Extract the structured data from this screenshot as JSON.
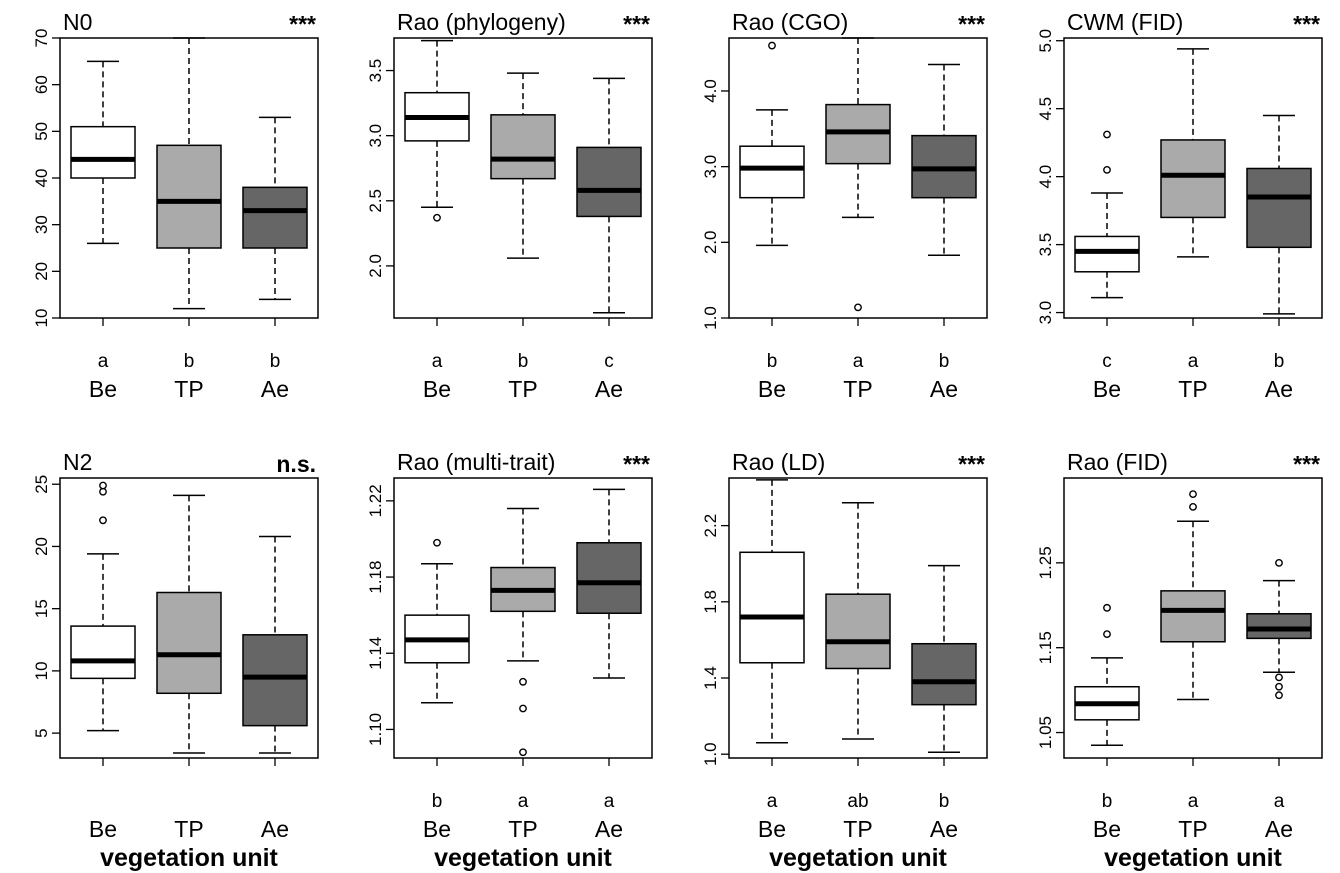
{
  "colors": {
    "Be": "#ffffff",
    "TP": "#aaaaaa",
    "Ae": "#666666",
    "line": "#000000"
  },
  "chart_data": [
    {
      "type": "box",
      "title": "N0",
      "significance": "***",
      "categories": [
        "Be",
        "TP",
        "Ae"
      ],
      "xlabel": "",
      "ylim": [
        10,
        70
      ],
      "yticks": [
        "10",
        "20",
        "30",
        "40",
        "50",
        "60",
        "70"
      ],
      "letters": [
        "a",
        "b",
        "b"
      ],
      "boxes": [
        {
          "min": 26,
          "q1": 40,
          "median": 44,
          "q3": 51,
          "max": 65,
          "outliers": []
        },
        {
          "min": 12,
          "q1": 25,
          "median": 35,
          "q3": 47,
          "max": 70,
          "outliers": []
        },
        {
          "min": 14,
          "q1": 25,
          "median": 33,
          "q3": 38,
          "max": 53,
          "outliers": []
        }
      ]
    },
    {
      "type": "box",
      "title": "Rao (phylogeny)",
      "significance": "***",
      "categories": [
        "Be",
        "TP",
        "Ae"
      ],
      "xlabel": "",
      "ylim": [
        1.6,
        3.75
      ],
      "yticks": [
        "2.0",
        "2.5",
        "3.0",
        "3.5"
      ],
      "letters": [
        "a",
        "b",
        "c"
      ],
      "boxes": [
        {
          "min": 2.45,
          "q1": 2.96,
          "median": 3.14,
          "q3": 3.33,
          "max": 3.73,
          "outliers": [
            2.37
          ]
        },
        {
          "min": 2.06,
          "q1": 2.67,
          "median": 2.82,
          "q3": 3.16,
          "max": 3.48,
          "outliers": []
        },
        {
          "min": 1.64,
          "q1": 2.38,
          "median": 2.58,
          "q3": 2.91,
          "max": 3.44,
          "outliers": []
        }
      ]
    },
    {
      "type": "box",
      "title": "Rao (CGO)",
      "significance": "***",
      "categories": [
        "Be",
        "TP",
        "Ae"
      ],
      "xlabel": "",
      "ylim": [
        1.0,
        4.7
      ],
      "yticks": [
        "1.0",
        "2.0",
        "3.0",
        "4.0"
      ],
      "letters": [
        "b",
        "a",
        "b"
      ],
      "boxes": [
        {
          "min": 1.96,
          "q1": 2.59,
          "median": 2.98,
          "q3": 3.27,
          "max": 3.75,
          "outliers": [
            4.6
          ]
        },
        {
          "min": 2.33,
          "q1": 3.04,
          "median": 3.46,
          "q3": 3.82,
          "max": 4.7,
          "outliers": [
            1.14
          ]
        },
        {
          "min": 1.83,
          "q1": 2.59,
          "median": 2.97,
          "q3": 3.41,
          "max": 4.35,
          "outliers": []
        }
      ]
    },
    {
      "type": "box",
      "title": "CWM (FID)",
      "significance": "***",
      "categories": [
        "Be",
        "TP",
        "Ae"
      ],
      "xlabel": "",
      "ylim": [
        2.96,
        5.02
      ],
      "yticks": [
        "3.0",
        "3.5",
        "4.0",
        "4.5",
        "5.0"
      ],
      "letters": [
        "c",
        "a",
        "b"
      ],
      "boxes": [
        {
          "min": 3.11,
          "q1": 3.3,
          "median": 3.45,
          "q3": 3.56,
          "max": 3.88,
          "outliers": [
            4.05,
            4.31
          ]
        },
        {
          "min": 3.41,
          "q1": 3.7,
          "median": 4.01,
          "q3": 4.27,
          "max": 4.94,
          "outliers": []
        },
        {
          "min": 2.99,
          "q1": 3.48,
          "median": 3.85,
          "q3": 4.06,
          "max": 4.45,
          "outliers": []
        }
      ]
    },
    {
      "type": "box",
      "title": "N2",
      "significance": "n.s.",
      "categories": [
        "Be",
        "TP",
        "Ae"
      ],
      "xlabel": "vegetation unit",
      "ylim": [
        3,
        25.5
      ],
      "yticks": [
        "5",
        "10",
        "15",
        "20",
        "25"
      ],
      "letters": [
        "",
        "",
        ""
      ],
      "boxes": [
        {
          "min": 5.2,
          "q1": 9.4,
          "median": 10.8,
          "q3": 13.6,
          "max": 19.4,
          "outliers": [
            22.1,
            24.4,
            24.9
          ]
        },
        {
          "min": 3.4,
          "q1": 8.2,
          "median": 11.3,
          "q3": 16.3,
          "max": 24.1,
          "outliers": []
        },
        {
          "min": 3.4,
          "q1": 5.6,
          "median": 9.5,
          "q3": 12.9,
          "max": 20.8,
          "outliers": []
        }
      ]
    },
    {
      "type": "box",
      "title": "Rao (multi-trait)",
      "significance": "***",
      "categories": [
        "Be",
        "TP",
        "Ae"
      ],
      "xlabel": "vegetation unit",
      "ylim": [
        1.085,
        1.232
      ],
      "yticks": [
        "1.10",
        "1.14",
        "1.18",
        "1.22"
      ],
      "letters": [
        "b",
        "a",
        "a"
      ],
      "boxes": [
        {
          "min": 1.114,
          "q1": 1.135,
          "median": 1.147,
          "q3": 1.16,
          "max": 1.187,
          "outliers": [
            1.198
          ]
        },
        {
          "min": 1.136,
          "q1": 1.162,
          "median": 1.173,
          "q3": 1.185,
          "max": 1.216,
          "outliers": [
            1.125,
            1.111,
            1.088
          ]
        },
        {
          "min": 1.127,
          "q1": 1.161,
          "median": 1.177,
          "q3": 1.198,
          "max": 1.226,
          "outliers": []
        }
      ]
    },
    {
      "type": "box",
      "title": "Rao (LD)",
      "significance": "***",
      "categories": [
        "Be",
        "TP",
        "Ae"
      ],
      "xlabel": "vegetation unit",
      "ylim": [
        0.98,
        2.45
      ],
      "yticks": [
        "1.0",
        "1.4",
        "1.8",
        "2.2"
      ],
      "letters": [
        "a",
        "ab",
        "b"
      ],
      "boxes": [
        {
          "min": 1.06,
          "q1": 1.48,
          "median": 1.72,
          "q3": 2.06,
          "max": 2.44,
          "outliers": []
        },
        {
          "min": 1.08,
          "q1": 1.45,
          "median": 1.59,
          "q3": 1.84,
          "max": 2.32,
          "outliers": []
        },
        {
          "min": 1.01,
          "q1": 1.26,
          "median": 1.38,
          "q3": 1.58,
          "max": 1.99,
          "outliers": []
        }
      ]
    },
    {
      "type": "box",
      "title": "Rao (FID)",
      "significance": "***",
      "categories": [
        "Be",
        "TP",
        "Ae"
      ],
      "xlabel": "vegetation unit",
      "ylim": [
        1.02,
        1.35
      ],
      "yticks": [
        "1.05",
        "1.15",
        "1.25"
      ],
      "letters": [
        "b",
        "a",
        "a"
      ],
      "boxes": [
        {
          "min": 1.035,
          "q1": 1.065,
          "median": 1.084,
          "q3": 1.104,
          "max": 1.138,
          "outliers": [
            1.166,
            1.197
          ]
        },
        {
          "min": 1.089,
          "q1": 1.157,
          "median": 1.194,
          "q3": 1.217,
          "max": 1.299,
          "outliers": [
            1.316,
            1.331
          ]
        },
        {
          "min": 1.121,
          "q1": 1.161,
          "median": 1.172,
          "q3": 1.19,
          "max": 1.229,
          "outliers": [
            1.115,
            1.104,
            1.094,
            1.25
          ]
        }
      ]
    }
  ]
}
